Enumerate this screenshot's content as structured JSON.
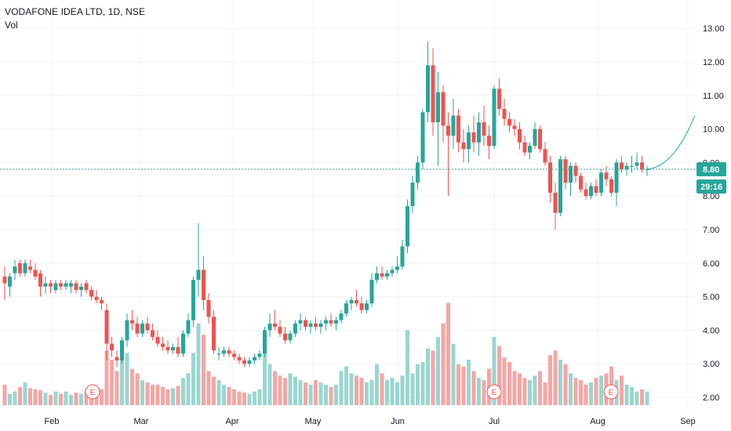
{
  "chart_data": {
    "type": "candlestick",
    "title": "VODAFONE IDEA LTD, 1D, NSE",
    "volume_label": "Vol",
    "price_axis": {
      "ticks": [
        "2.00",
        "3.00",
        "4.00",
        "5.00",
        "6.00",
        "7.00",
        "8.00",
        "9.00",
        "10.00",
        "11.00",
        "12.00",
        "13.00"
      ],
      "range": [
        1.8,
        13.5
      ]
    },
    "time_axis": {
      "ticks": [
        "Feb",
        "Mar",
        "Apr",
        "May",
        "Jun",
        "Jul",
        "Aug",
        "Sep"
      ]
    },
    "last_price": "8.80",
    "countdown": "29:16",
    "earnings_marker": "E",
    "colors": {
      "up": "#26a69a",
      "down": "#ef5350",
      "vol_up": "#9ad6cf",
      "vol_down": "#f5a6a4",
      "price_line": "#26a69a",
      "grid": "#f0f3fa",
      "axis_text": "#131722"
    },
    "candles": [
      [
        5.6,
        5.9,
        4.9,
        5.4
      ],
      [
        5.3,
        5.7,
        5.0,
        5.6
      ],
      [
        5.7,
        6.1,
        5.5,
        5.9
      ],
      [
        6.0,
        6.1,
        5.6,
        5.7
      ],
      [
        5.7,
        6.1,
        5.6,
        6.0
      ],
      [
        5.9,
        6.1,
        5.7,
        5.8
      ],
      [
        5.8,
        6.0,
        5.5,
        5.6
      ],
      [
        5.7,
        5.8,
        5.0,
        5.3
      ],
      [
        5.3,
        5.6,
        5.1,
        5.4
      ],
      [
        5.4,
        5.5,
        5.1,
        5.3
      ],
      [
        5.2,
        5.5,
        5.1,
        5.4
      ],
      [
        5.4,
        5.5,
        5.2,
        5.3
      ],
      [
        5.3,
        5.5,
        5.2,
        5.4
      ],
      [
        5.3,
        5.5,
        5.1,
        5.4
      ],
      [
        5.4,
        5.5,
        5.1,
        5.2
      ],
      [
        5.2,
        5.4,
        5.0,
        5.3
      ],
      [
        5.4,
        5.5,
        5.1,
        5.2
      ],
      [
        5.2,
        5.3,
        4.9,
        5.0
      ],
      [
        5.0,
        5.2,
        4.8,
        4.9
      ],
      [
        4.9,
        5.0,
        4.6,
        4.8
      ],
      [
        4.6,
        4.8,
        3.1,
        3.6
      ],
      [
        3.6,
        3.8,
        3.2,
        3.4
      ],
      [
        3.2,
        3.4,
        2.9,
        3.1
      ],
      [
        3.1,
        3.8,
        3.0,
        3.7
      ],
      [
        3.7,
        4.5,
        3.5,
        4.3
      ],
      [
        4.3,
        4.6,
        4.0,
        4.2
      ],
      [
        4.2,
        4.4,
        3.8,
        3.9
      ],
      [
        3.9,
        4.3,
        3.8,
        4.2
      ],
      [
        4.2,
        4.4,
        3.9,
        4.0
      ],
      [
        4.0,
        4.2,
        3.7,
        3.8
      ],
      [
        3.8,
        4.0,
        3.5,
        3.6
      ],
      [
        3.6,
        3.8,
        3.4,
        3.5
      ],
      [
        3.5,
        3.7,
        3.3,
        3.4
      ],
      [
        3.4,
        3.6,
        3.3,
        3.5
      ],
      [
        3.5,
        3.8,
        3.2,
        3.3
      ],
      [
        3.3,
        4.0,
        3.2,
        3.9
      ],
      [
        3.9,
        4.5,
        3.8,
        4.3
      ],
      [
        4.3,
        5.6,
        4.1,
        5.5
      ],
      [
        5.5,
        7.2,
        5.0,
        5.8
      ],
      [
        5.8,
        6.2,
        4.6,
        4.9
      ],
      [
        4.9,
        5.1,
        4.2,
        4.4
      ],
      [
        4.4,
        4.6,
        3.3,
        3.4
      ],
      [
        3.3,
        3.5,
        3.1,
        3.3
      ],
      [
        3.3,
        3.5,
        3.2,
        3.4
      ],
      [
        3.4,
        3.5,
        3.2,
        3.3
      ],
      [
        3.3,
        3.4,
        3.1,
        3.2
      ],
      [
        3.2,
        3.3,
        3.0,
        3.1
      ],
      [
        3.1,
        3.2,
        2.9,
        3.0
      ],
      [
        3.0,
        3.2,
        2.9,
        3.1
      ],
      [
        3.1,
        3.3,
        3.0,
        3.2
      ],
      [
        3.2,
        3.4,
        3.1,
        3.3
      ],
      [
        3.3,
        4.1,
        3.2,
        4.0
      ],
      [
        4.0,
        4.5,
        3.8,
        4.2
      ],
      [
        4.2,
        4.6,
        4.0,
        4.1
      ],
      [
        4.1,
        4.3,
        3.8,
        3.9
      ],
      [
        3.9,
        4.1,
        3.6,
        3.7
      ],
      [
        3.7,
        4.0,
        3.6,
        3.9
      ],
      [
        3.9,
        4.3,
        3.8,
        4.2
      ],
      [
        4.2,
        4.5,
        4.0,
        4.3
      ],
      [
        4.3,
        4.4,
        4.0,
        4.1
      ],
      [
        4.1,
        4.3,
        3.9,
        4.2
      ],
      [
        4.2,
        4.4,
        4.0,
        4.1
      ],
      [
        4.1,
        4.3,
        3.9,
        4.2
      ],
      [
        4.2,
        4.4,
        4.0,
        4.3
      ],
      [
        4.3,
        4.5,
        4.1,
        4.2
      ],
      [
        4.2,
        4.4,
        4.0,
        4.3
      ],
      [
        4.3,
        4.6,
        4.2,
        4.5
      ],
      [
        4.5,
        4.9,
        4.4,
        4.8
      ],
      [
        4.8,
        5.0,
        4.6,
        4.9
      ],
      [
        4.9,
        5.2,
        4.7,
        4.8
      ],
      [
        4.8,
        5.0,
        4.5,
        4.6
      ],
      [
        4.6,
        4.9,
        4.5,
        4.8
      ],
      [
        4.8,
        5.7,
        4.7,
        5.5
      ],
      [
        5.5,
        5.9,
        5.4,
        5.7
      ],
      [
        5.7,
        5.9,
        5.5,
        5.6
      ],
      [
        5.6,
        5.8,
        5.5,
        5.7
      ],
      [
        5.7,
        5.9,
        5.6,
        5.8
      ],
      [
        5.8,
        6.2,
        5.7,
        5.9
      ],
      [
        5.9,
        6.7,
        5.8,
        6.5
      ],
      [
        6.5,
        7.9,
        6.3,
        7.7
      ],
      [
        7.7,
        8.6,
        7.5,
        8.4
      ],
      [
        8.4,
        9.2,
        8.2,
        9.0
      ],
      [
        9.0,
        10.6,
        8.8,
        10.5
      ],
      [
        10.5,
        12.6,
        10.2,
        11.9
      ],
      [
        11.9,
        12.4,
        9.8,
        10.2
      ],
      [
        10.2,
        11.7,
        8.9,
        11.1
      ],
      [
        11.1,
        11.3,
        9.6,
        10.1
      ],
      [
        10.1,
        10.5,
        8.0,
        9.8
      ],
      [
        9.8,
        10.9,
        9.4,
        10.4
      ],
      [
        10.4,
        10.6,
        9.3,
        9.6
      ],
      [
        9.6,
        10.0,
        9.0,
        9.4
      ],
      [
        9.4,
        10.1,
        9.0,
        9.9
      ],
      [
        9.9,
        10.4,
        9.3,
        9.6
      ],
      [
        9.6,
        10.5,
        9.2,
        10.2
      ],
      [
        10.2,
        10.7,
        9.5,
        9.8
      ],
      [
        9.8,
        10.1,
        9.1,
        9.5
      ],
      [
        9.5,
        11.3,
        9.4,
        11.2
      ],
      [
        11.2,
        11.5,
        10.4,
        10.6
      ],
      [
        10.6,
        10.9,
        10.1,
        10.3
      ],
      [
        10.3,
        10.5,
        9.9,
        10.1
      ],
      [
        10.1,
        10.3,
        9.8,
        10.0
      ],
      [
        10.0,
        10.2,
        9.4,
        9.6
      ],
      [
        9.6,
        9.8,
        9.2,
        9.3
      ],
      [
        9.3,
        9.6,
        9.1,
        9.5
      ],
      [
        9.5,
        10.2,
        9.4,
        10.0
      ],
      [
        10.0,
        10.1,
        9.3,
        9.4
      ],
      [
        9.4,
        9.6,
        8.9,
        9.0
      ],
      [
        9.0,
        9.2,
        7.8,
        8.1
      ],
      [
        8.1,
        8.4,
        7.0,
        7.5
      ],
      [
        7.5,
        9.2,
        7.4,
        9.1
      ],
      [
        9.1,
        9.2,
        8.2,
        8.4
      ],
      [
        8.4,
        9.0,
        8.0,
        8.9
      ],
      [
        8.9,
        9.0,
        8.4,
        8.6
      ],
      [
        8.6,
        8.7,
        8.1,
        8.2
      ],
      [
        8.2,
        8.4,
        7.9,
        8.0
      ],
      [
        8.0,
        8.4,
        7.9,
        8.3
      ],
      [
        8.3,
        8.5,
        8.0,
        8.1
      ],
      [
        8.1,
        8.8,
        8.0,
        8.7
      ],
      [
        8.7,
        8.9,
        8.3,
        8.5
      ],
      [
        8.5,
        8.6,
        8.0,
        8.1
      ],
      [
        8.1,
        9.1,
        7.7,
        9.0
      ],
      [
        9.0,
        9.2,
        8.7,
        8.8
      ],
      [
        8.8,
        9.0,
        8.6,
        8.9
      ],
      [
        8.9,
        9.2,
        8.7,
        8.9
      ],
      [
        8.9,
        9.3,
        8.8,
        9.0
      ],
      [
        9.0,
        9.2,
        8.7,
        8.8
      ],
      [
        8.8,
        8.9,
        8.6,
        8.8
      ]
    ],
    "volume": [
      18,
      10,
      12,
      16,
      20,
      15,
      14,
      13,
      11,
      9,
      12,
      10,
      12,
      9,
      11,
      10,
      12,
      10,
      13,
      14,
      48,
      40,
      30,
      44,
      46,
      32,
      28,
      22,
      20,
      18,
      18,
      16,
      14,
      15,
      17,
      24,
      28,
      46,
      72,
      62,
      30,
      25,
      22,
      18,
      16,
      14,
      12,
      11,
      10,
      12,
      14,
      45,
      36,
      30,
      26,
      24,
      28,
      25,
      22,
      20,
      18,
      22,
      20,
      18,
      16,
      18,
      30,
      34,
      28,
      26,
      24,
      20,
      22,
      36,
      28,
      22,
      24,
      20,
      26,
      66,
      28,
      36,
      38,
      50,
      48,
      60,
      72,
      90,
      54,
      36,
      34,
      40,
      30,
      24,
      22,
      32,
      60,
      52,
      42,
      38,
      30,
      28,
      24,
      22,
      26,
      30,
      20,
      44,
      48,
      40,
      36,
      28,
      24,
      22,
      18,
      20,
      24,
      26,
      28,
      34,
      22,
      26,
      18,
      16,
      12,
      14,
      12
    ]
  }
}
